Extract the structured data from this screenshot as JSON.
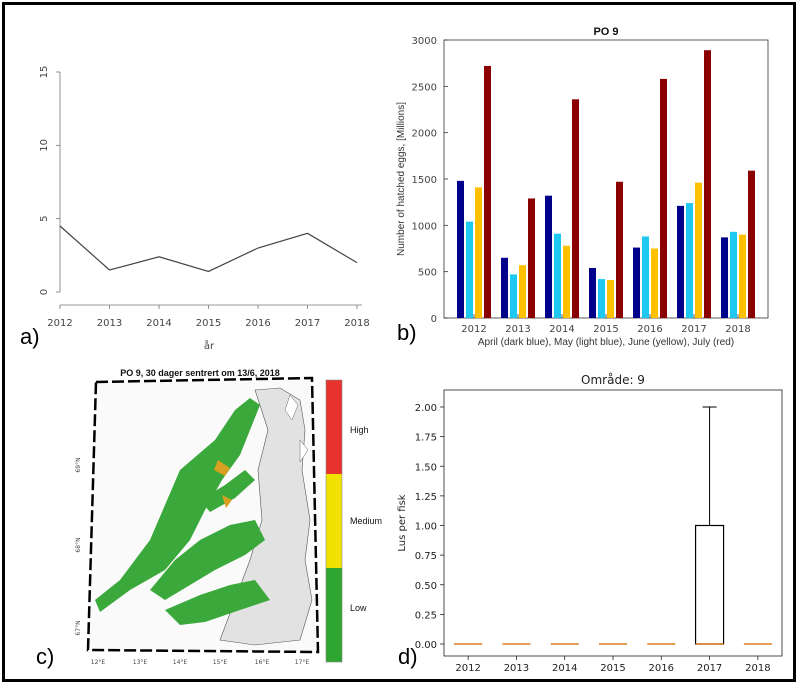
{
  "panel_labels": {
    "a": "a)",
    "b": "b)",
    "c": "c)",
    "d": "d)"
  },
  "chart_data": [
    {
      "type": "line",
      "xlabel": "år",
      "ylabel": "",
      "x": [
        "2012",
        "2013",
        "2014",
        "2015",
        "2016",
        "2017",
        "2018"
      ],
      "values": [
        4.5,
        1.5,
        2.4,
        1.4,
        3.0,
        4.0,
        2.0
      ],
      "yticks": [
        "0",
        "5",
        "10",
        "15"
      ],
      "ylim": [
        0,
        15
      ],
      "grid": false
    },
    {
      "type": "bar",
      "title": "PO 9",
      "ylabel": "Number of hatched eggs, [Millions]",
      "xlabel": "April (dark blue), May (light blue), June (yellow), July (red)",
      "categories": [
        "2012",
        "2013",
        "2014",
        "2015",
        "2016",
        "2017",
        "2018"
      ],
      "series": [
        {
          "values": [
            1480,
            650,
            1320,
            540,
            760,
            1210,
            870
          ],
          "color": "#00008b"
        },
        {
          "values": [
            1040,
            470,
            910,
            420,
            880,
            1240,
            930
          ],
          "color": "#1ec8f0"
        },
        {
          "values": [
            1410,
            570,
            780,
            410,
            750,
            1460,
            900
          ],
          "color": "#ffc000"
        },
        {
          "values": [
            2720,
            1290,
            2360,
            1470,
            2580,
            2890,
            1590
          ],
          "color": "#8b0000"
        }
      ],
      "yticks": [
        "0",
        "500",
        "1000",
        "1500",
        "2000",
        "2500",
        "3000"
      ],
      "ylim": [
        0,
        3000
      ],
      "grid": false
    },
    {
      "type": "map",
      "title": "PO 9, 30 dager sentrert om 13/6, 2018",
      "legend": [
        "High",
        "Medium",
        "Low"
      ],
      "legend_colors": [
        "#e8322d",
        "#f2e200",
        "#2ea52e"
      ],
      "lon_ticks": [
        "12°E",
        "13°E",
        "14°E",
        "15°E",
        "16°E",
        "17°E"
      ],
      "lat_ticks": [
        "69°N",
        "68°N",
        "67°N"
      ],
      "land_color": "#e2e2e2",
      "zone_color": "#3aa83a"
    },
    {
      "type": "box",
      "title": "Område: 9",
      "ylabel": "Lus per fisk",
      "categories": [
        "2012",
        "2013",
        "2014",
        "2015",
        "2016",
        "2017",
        "2018"
      ],
      "boxes": [
        {
          "q1": 0,
          "median": 0,
          "q3": 0,
          "whisker_low": 0,
          "whisker_high": 0
        },
        {
          "q1": 0,
          "median": 0,
          "q3": 0,
          "whisker_low": 0,
          "whisker_high": 0
        },
        {
          "q1": 0,
          "median": 0,
          "q3": 0,
          "whisker_low": 0,
          "whisker_high": 0
        },
        {
          "q1": 0,
          "median": 0,
          "q3": 0,
          "whisker_low": 0,
          "whisker_high": 0
        },
        {
          "q1": 0,
          "median": 0,
          "q3": 0,
          "whisker_low": 0,
          "whisker_high": 0
        },
        {
          "q1": 0,
          "median": 0,
          "q3": 1.0,
          "whisker_low": 0,
          "whisker_high": 2.0
        },
        {
          "q1": 0,
          "median": 0,
          "q3": 0,
          "whisker_low": 0,
          "whisker_high": 0
        }
      ],
      "yticks": [
        "0.00",
        "0.25",
        "0.50",
        "0.75",
        "1.00",
        "1.25",
        "1.50",
        "1.75",
        "2.00"
      ],
      "ylim": [
        0,
        2
      ],
      "median_color": "#e07b1a",
      "grid": false
    }
  ]
}
